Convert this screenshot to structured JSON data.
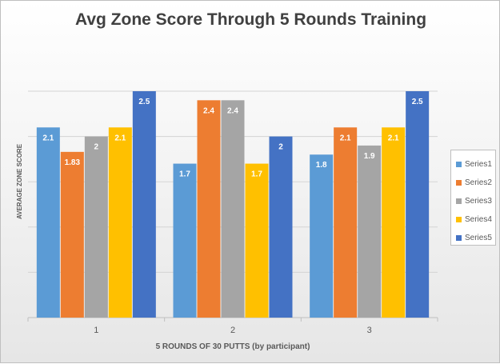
{
  "chart_data": {
    "type": "bar",
    "title": "Avg Zone Score Through 5 Rounds Training",
    "xlabel": "5 ROUNDS OF 30 PUTTS (by participant)",
    "ylabel": "AVERAGE ZONE SCORE",
    "ylim": [
      0,
      2.5
    ],
    "grid": true,
    "categories": [
      "1",
      "2",
      "3"
    ],
    "legend_position": "right",
    "series": [
      {
        "name": "Series1",
        "color": "#5B9BD5",
        "values": [
          2.1,
          1.7,
          1.8
        ],
        "labels": [
          "2.1",
          "1.7",
          "1.8"
        ]
      },
      {
        "name": "Series2",
        "color": "#ED7D31",
        "values": [
          1.83,
          2.4,
          2.1
        ],
        "labels": [
          "1.83",
          "2.4",
          "2.1"
        ]
      },
      {
        "name": "Series3",
        "color": "#A5A5A5",
        "values": [
          2,
          2.4,
          1.9
        ],
        "labels": [
          "2",
          "2.4",
          "1.9"
        ]
      },
      {
        "name": "Series4",
        "color": "#FFC000",
        "values": [
          2.1,
          1.7,
          2.1
        ],
        "labels": [
          "2.1",
          "1.7",
          "2.1"
        ]
      },
      {
        "name": "Series5",
        "color": "#4472C4",
        "values": [
          2.5,
          2,
          2.5
        ],
        "labels": [
          "2.5",
          "2",
          "2.5"
        ]
      }
    ]
  }
}
